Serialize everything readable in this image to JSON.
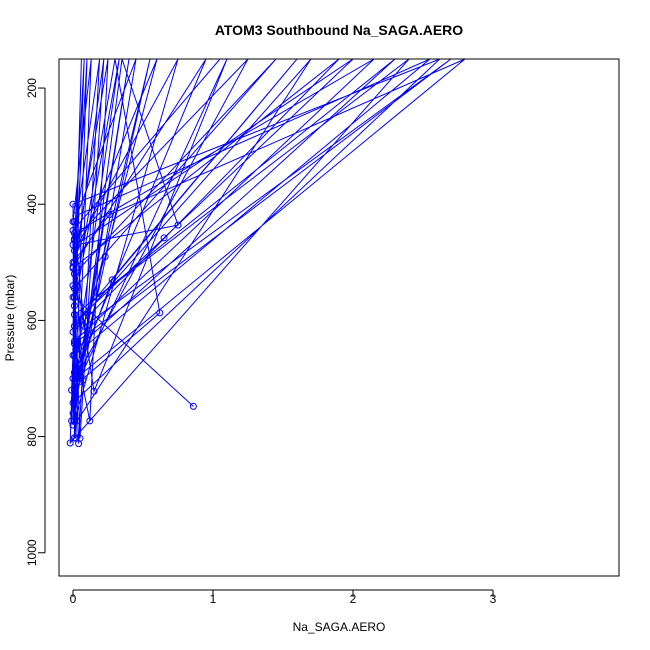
{
  "chart_data": {
    "type": "line",
    "title": "ATOM3 Southbound Na_SAGA.AERO",
    "xlabel": "Na_SAGA.AERO",
    "ylabel": "Pressure (mbar)",
    "xlim": [
      -0.1,
      3.9
    ],
    "ylim": [
      1040,
      150
    ],
    "y_reversed": true,
    "grid": false,
    "legend": "none",
    "color": "#0000ff",
    "x_ticks": [
      0,
      1,
      2,
      3
    ],
    "x_tick_labels": [
      "0",
      "1",
      "2",
      "3"
    ],
    "y_ticks": [
      200,
      400,
      600,
      800,
      1000
    ],
    "y_tick_labels": [
      "200",
      "400",
      "600",
      "800",
      "1000"
    ],
    "series": [
      {
        "points": [
          {
            "x": 0.86,
            "y": 748
          },
          {
            "x": 0.01,
            "y": 560
          },
          {
            "x": 0.3,
            "y": 150
          },
          {
            "x": 0.62,
            "y": 587
          },
          {
            "x": 0.05,
            "y": 705
          },
          {
            "x": 0.35,
            "y": 150
          },
          {
            "x": 0.75,
            "y": 436
          },
          {
            "x": 0.02,
            "y": 470
          },
          {
            "x": 2.0,
            "y": 150
          },
          {
            "x": 0.65,
            "y": 458
          },
          {
            "x": 0.03,
            "y": 600
          },
          {
            "x": 1.6,
            "y": 150
          },
          {
            "x": 0.28,
            "y": 530
          },
          {
            "x": 0.02,
            "y": 700
          },
          {
            "x": 2.8,
            "y": 150
          },
          {
            "x": 0.26,
            "y": 418
          },
          {
            "x": 0.0,
            "y": 500
          },
          {
            "x": 0.6,
            "y": 150
          },
          {
            "x": 0.23,
            "y": 490
          },
          {
            "x": 0.02,
            "y": 650
          },
          {
            "x": 2.3,
            "y": 150
          },
          {
            "x": 0.17,
            "y": 560
          },
          {
            "x": 0.01,
            "y": 720
          },
          {
            "x": 1.1,
            "y": 150
          },
          {
            "x": 0.15,
            "y": 722
          },
          {
            "x": 0.01,
            "y": 500
          },
          {
            "x": 0.25,
            "y": 150
          },
          {
            "x": 0.12,
            "y": 773
          },
          {
            "x": 0.01,
            "y": 640
          },
          {
            "x": 2.7,
            "y": 150
          },
          {
            "x": 0.08,
            "y": 610
          },
          {
            "x": 0.01,
            "y": 430
          },
          {
            "x": 0.45,
            "y": 150
          },
          {
            "x": 0.07,
            "y": 703
          },
          {
            "x": 0.01,
            "y": 460
          },
          {
            "x": 1.25,
            "y": 150
          },
          {
            "x": 0.06,
            "y": 682
          },
          {
            "x": 0.0,
            "y": 540
          },
          {
            "x": 0.22,
            "y": 150
          },
          {
            "x": 0.05,
            "y": 803
          },
          {
            "x": 0.0,
            "y": 470
          },
          {
            "x": 0.19,
            "y": 150
          },
          {
            "x": 0.04,
            "y": 812
          },
          {
            "x": 0.01,
            "y": 610
          },
          {
            "x": 1.7,
            "y": 150
          },
          {
            "x": 0.03,
            "y": 773
          },
          {
            "x": 0.0,
            "y": 430
          },
          {
            "x": 0.13,
            "y": 150
          },
          {
            "x": 0.02,
            "y": 803
          },
          {
            "x": 0.01,
            "y": 660
          },
          {
            "x": 2.55,
            "y": 150
          },
          {
            "x": 0.02,
            "y": 420
          },
          {
            "x": 0.0,
            "y": 560
          },
          {
            "x": 0.1,
            "y": 150
          },
          {
            "x": 0.01,
            "y": 802
          },
          {
            "x": 0.01,
            "y": 480
          },
          {
            "x": 0.75,
            "y": 150
          },
          {
            "x": 0.01,
            "y": 773
          },
          {
            "x": 0.0,
            "y": 700
          },
          {
            "x": 0.08,
            "y": 150
          },
          {
            "x": 0.01,
            "y": 462
          },
          {
            "x": 0.0,
            "y": 620
          },
          {
            "x": 1.9,
            "y": 150
          },
          {
            "x": 0.0,
            "y": 510
          },
          {
            "x": 0.01,
            "y": 735
          },
          {
            "x": 0.55,
            "y": 150
          },
          {
            "x": -0.01,
            "y": 720
          },
          {
            "x": 0.01,
            "y": 590
          },
          {
            "x": 2.4,
            "y": 150
          },
          {
            "x": -0.02,
            "y": 811
          },
          {
            "x": 0.0,
            "y": 660
          },
          {
            "x": 0.06,
            "y": 150
          },
          {
            "x": -0.01,
            "y": 773
          },
          {
            "x": 0.01,
            "y": 520
          },
          {
            "x": 1.45,
            "y": 150
          },
          {
            "x": 0.01,
            "y": 545
          },
          {
            "x": 0.0,
            "y": 780
          },
          {
            "x": 0.4,
            "y": 150
          },
          {
            "x": 0.0,
            "y": 760
          },
          {
            "x": 0.01,
            "y": 450
          },
          {
            "x": 2.15,
            "y": 150
          },
          {
            "x": 0.01,
            "y": 636
          },
          {
            "x": 0.0,
            "y": 508
          },
          {
            "x": 0.95,
            "y": 150
          },
          {
            "x": 0.02,
            "y": 688
          },
          {
            "x": 0.0,
            "y": 742
          },
          {
            "x": 2.62,
            "y": 150
          },
          {
            "x": 0.0,
            "y": 400
          },
          {
            "x": 0.01,
            "y": 575
          },
          {
            "x": 0.33,
            "y": 150
          },
          {
            "x": 0.01,
            "y": 690
          },
          {
            "x": 0.0,
            "y": 445
          },
          {
            "x": 1.05,
            "y": 150
          }
        ]
      }
    ]
  }
}
